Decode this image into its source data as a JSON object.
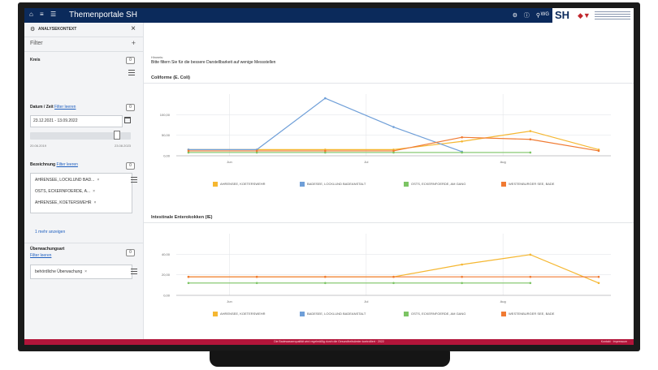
{
  "header": {
    "app_title": "Themenportale SH",
    "nav_icons": [
      "home-icon",
      "menu-icon",
      "list-icon"
    ],
    "right_icons": [
      "settings-icon",
      "info-icon",
      "person-icon"
    ],
    "user": "WG",
    "logo_text": "SH"
  },
  "sidebar": {
    "title": "ANALYSEKONTEXT",
    "filter_label": "Filter",
    "kreis": {
      "label": "Kreis",
      "badge": "0"
    },
    "datum": {
      "label": "Datum / Zeit",
      "link": "Filter leeren",
      "badge": "0",
      "value": "23.12.2021 - 13.09.2022",
      "slider_min": "20.06.2019",
      "slider_max": "23.08.2023",
      "slider_position": 0.89
    },
    "bezeichnung": {
      "label": "Bezeichnung",
      "link": "Filter leeren",
      "badge": "0",
      "chips": [
        "AHRENSEE, LOCKLUND BAD...",
        "OSTS, ECKERNFOERDE, A...",
        "AHRENSEE, KOETERSWEHR"
      ],
      "more_link": "1 mehr anzeigen"
    },
    "ueberwachung": {
      "label": "Überwachungsart",
      "link": "Filter leeren",
      "badge": "0",
      "chip": "behördliche Überwachung"
    }
  },
  "main": {
    "hint_label": "Hinweis:",
    "hint_text": "Bitte filtern Sie für die bessere Darstellbarkeit auf wenige Messstellen",
    "chart1_title": "Coliforme (E. Coli)",
    "chart2_title": "Intestinale Enterokokken (IE)"
  },
  "legend": [
    {
      "name": "AHRENSEE, KOETERSWEHR",
      "color": "#f5b731"
    },
    {
      "name": "BADESEE, LOCKLUND BADEANSTALT",
      "color": "#6f9fd8"
    },
    {
      "name": "OSTS, ECKERNFOERDE, AM GANG",
      "color": "#7cc464"
    },
    {
      "name": "WESTENBURGER SEE, BADE",
      "color": "#f07a32"
    }
  ],
  "chart_data": [
    {
      "type": "line",
      "title": "Coliforme (E. Coli)",
      "x": [
        "2022-06-01",
        "2022-06-15",
        "2022-07-01",
        "2022-07-15",
        "2022-08-01",
        "2022-08-15",
        "2022-09-01"
      ],
      "x_tick_labels": [
        "Jun",
        "Jul",
        "Aug"
      ],
      "y_tick_labels": [
        "0,00",
        "50,00",
        "100,00"
      ],
      "ylim": [
        0,
        150
      ],
      "series": [
        {
          "name": "AHRENSEE, KOETERSWEHR",
          "values": [
            15,
            15,
            15,
            15,
            35,
            60,
            15
          ]
        },
        {
          "name": "BADESEE, LOCKLUND BADEANSTALT",
          "values": [
            15,
            15,
            140,
            70,
            10,
            null,
            null
          ]
        },
        {
          "name": "OSTS, ECKERNFOERDE, AM GANG",
          "values": [
            8,
            8,
            8,
            8,
            8,
            8,
            null
          ]
        },
        {
          "name": "WESTENBURGER SEE, BADE",
          "values": [
            12,
            12,
            12,
            12,
            45,
            40,
            12
          ]
        }
      ],
      "grid": true
    },
    {
      "type": "line",
      "title": "Intestinale Enterokokken (IE)",
      "x": [
        "2022-06-01",
        "2022-06-15",
        "2022-07-01",
        "2022-07-15",
        "2022-08-01",
        "2022-08-15",
        "2022-09-01"
      ],
      "x_tick_labels": [
        "Jun",
        "Jul",
        "Aug"
      ],
      "y_tick_labels": [
        "0,00",
        "20,00",
        "40,00"
      ],
      "ylim": [
        0,
        50
      ],
      "series": [
        {
          "name": "AHRENSEE, KOETERSWEHR",
          "values": [
            15,
            15,
            15,
            15,
            25,
            33,
            10
          ]
        },
        {
          "name": "OSTS, ECKERNFOERDE, AM GANG",
          "values": [
            10,
            10,
            10,
            10,
            10,
            10,
            null
          ]
        },
        {
          "name": "WESTENBURGER SEE, BADE",
          "values": [
            15,
            15,
            15,
            15,
            15,
            15,
            15
          ]
        }
      ],
      "grid": true
    }
  ],
  "footer": {
    "text": "Die Badewasserqualität wird regelmäßig durch die Gesundheitsämter kontrolliert · 2022",
    "right": "Kontakt · Impressum"
  }
}
